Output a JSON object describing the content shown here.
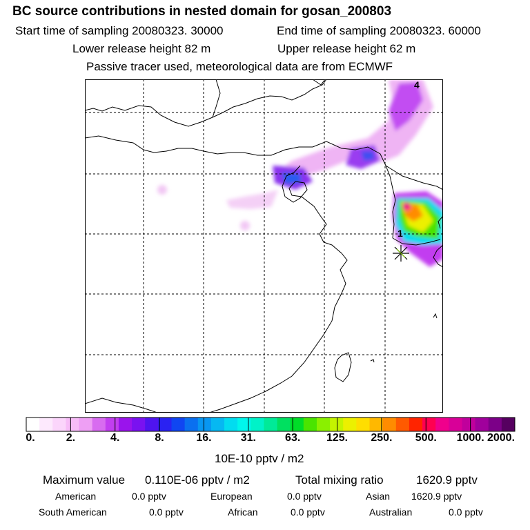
{
  "header": {
    "title": "BC  source contributions in nested domain for gosan_200803",
    "start_time": "Start time of sampling 20080323. 30000",
    "end_time": "End time of sampling 20080323. 60000",
    "lower_release": "Lower release height   82 m",
    "upper_release": "Upper release height   62 m",
    "tracer_note": "Passive tracer used, meteorological data are from ECMWF"
  },
  "chart_data": {
    "type": "heatmap",
    "title": "BC  source contributions in nested domain for gosan_200803",
    "colorbar": {
      "ticks": [
        "0.",
        "2.",
        "4.",
        "8.",
        "16.",
        "31.",
        "63.",
        "125.",
        "250.",
        "500.",
        "1000.",
        "2000."
      ],
      "units": "10E-10 pptv / m2",
      "colors": [
        "#ffffff",
        "#fde9fd",
        "#fbd5fb",
        "#f7bcf7",
        "#ee9ff4",
        "#d86cf0",
        "#c23ef0",
        "#9a14ec",
        "#7a12f0",
        "#4f14ef",
        "#2a22f2",
        "#1046f2",
        "#0a70f0",
        "#0896f2",
        "#06b8f2",
        "#02dcf0",
        "#00f6ec",
        "#00f2c8",
        "#00ea98",
        "#00e060",
        "#00dd28",
        "#4ae400",
        "#8af000",
        "#c4f400",
        "#ecf000",
        "#ffde00",
        "#ffb800",
        "#ff8c00",
        "#ff5a00",
        "#ff2400",
        "#ff0050",
        "#f0008c",
        "#d80098",
        "#c0009c",
        "#a0009c",
        "#7c0088",
        "#560060"
      ],
      "boundaries": [
        0,
        0.5,
        1,
        1.5,
        2,
        2.7,
        3.3,
        4,
        4.7,
        5.3,
        6,
        8,
        10,
        12,
        14,
        16,
        21,
        26,
        31,
        42,
        52,
        63,
        83,
        104,
        125,
        167,
        208,
        250,
        333,
        417,
        500,
        667,
        833,
        1000,
        1333,
        1667,
        2000
      ]
    },
    "source_markers": [
      {
        "label": "4",
        "position": "top-right"
      },
      {
        "label": "1",
        "position": "near receptor (Gosan)"
      }
    ],
    "receptor": "Gosan",
    "grid": true,
    "legend": "bottom colorbar"
  },
  "summary": {
    "max_label": "Maximum value",
    "max_value": "0.110E-06 pptv / m2",
    "total_label": "Total mixing ratio",
    "total_value": "1620.9 pptv",
    "regions": [
      {
        "name": "American",
        "value": "0.0 pptv"
      },
      {
        "name": "European",
        "value": "0.0 pptv"
      },
      {
        "name": "Asian",
        "value": "1620.9 pptv"
      },
      {
        "name": "South American",
        "value": "0.0 pptv"
      },
      {
        "name": "African",
        "value": "0.0 pptv"
      },
      {
        "name": "Australian",
        "value": "0.0 pptv"
      }
    ]
  }
}
